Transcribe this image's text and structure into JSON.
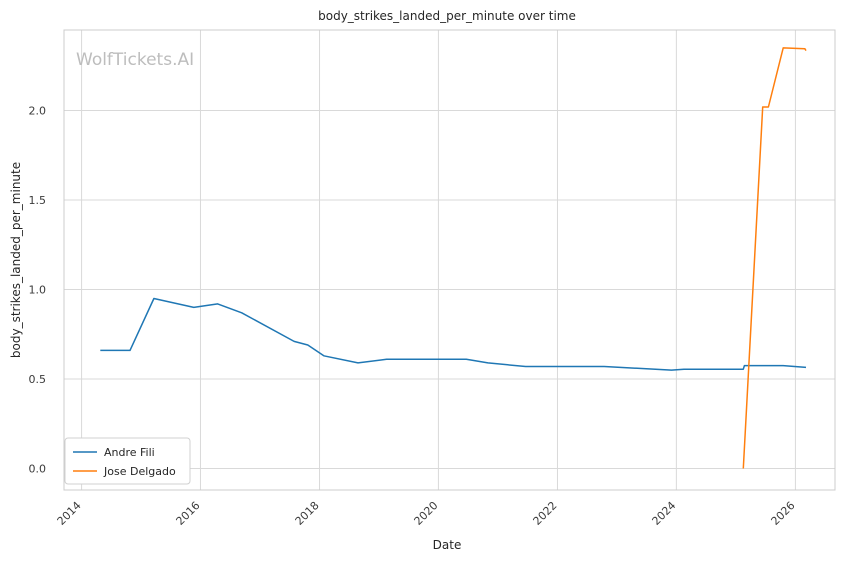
{
  "chart_data": {
    "type": "line",
    "title": "body_strikes_landed_per_minute over time",
    "xlabel": "Date",
    "ylabel": "body_strikes_landed_per_minute",
    "watermark": "WolfTickets.AI",
    "xlim": [
      "2013-09-15",
      "2026-09-01"
    ],
    "ylim": [
      -0.12,
      2.45
    ],
    "x_ticks": [
      "2014",
      "2016",
      "2018",
      "2020",
      "2022",
      "2024",
      "2026"
    ],
    "y_ticks": [
      "0.0",
      "0.5",
      "1.0",
      "1.5",
      "2.0"
    ],
    "grid": true,
    "legend_position": "lower-left",
    "series": [
      {
        "name": "Andre Fili",
        "color": "#1f77b4",
        "points": [
          [
            "2014-04-26",
            0.66
          ],
          [
            "2014-10-25",
            0.66
          ],
          [
            "2015-03-21",
            0.95
          ],
          [
            "2015-11-21",
            0.9
          ],
          [
            "2016-04-16",
            0.92
          ],
          [
            "2016-09-10",
            0.87
          ],
          [
            "2017-07-29",
            0.71
          ],
          [
            "2017-10-21",
            0.69
          ],
          [
            "2018-01-27",
            0.63
          ],
          [
            "2018-08-25",
            0.59
          ],
          [
            "2019-02-17",
            0.61
          ],
          [
            "2020-01-25",
            0.61
          ],
          [
            "2020-06-20",
            0.61
          ],
          [
            "2020-10-31",
            0.59
          ],
          [
            "2021-06-19",
            0.57
          ],
          [
            "2022-04-23",
            0.57
          ],
          [
            "2022-10-15",
            0.57
          ],
          [
            "2023-12-02",
            0.55
          ],
          [
            "2024-02-17",
            0.555
          ],
          [
            "2024-07-20",
            0.555
          ],
          [
            "2025-02-15",
            0.555
          ],
          [
            "2025-02-22",
            0.575
          ],
          [
            "2025-06-21",
            0.575
          ],
          [
            "2025-10-18",
            0.575
          ],
          [
            "2026-03-07",
            0.565
          ]
        ]
      },
      {
        "name": "Jose Delgado",
        "color": "#ff7f0e",
        "points": [
          [
            "2025-02-15",
            0.0
          ],
          [
            "2025-06-14",
            2.02
          ],
          [
            "2025-07-19",
            2.02
          ],
          [
            "2025-10-18",
            2.35
          ],
          [
            "2026-02-28",
            2.345
          ],
          [
            "2026-03-07",
            2.335
          ]
        ]
      }
    ]
  }
}
